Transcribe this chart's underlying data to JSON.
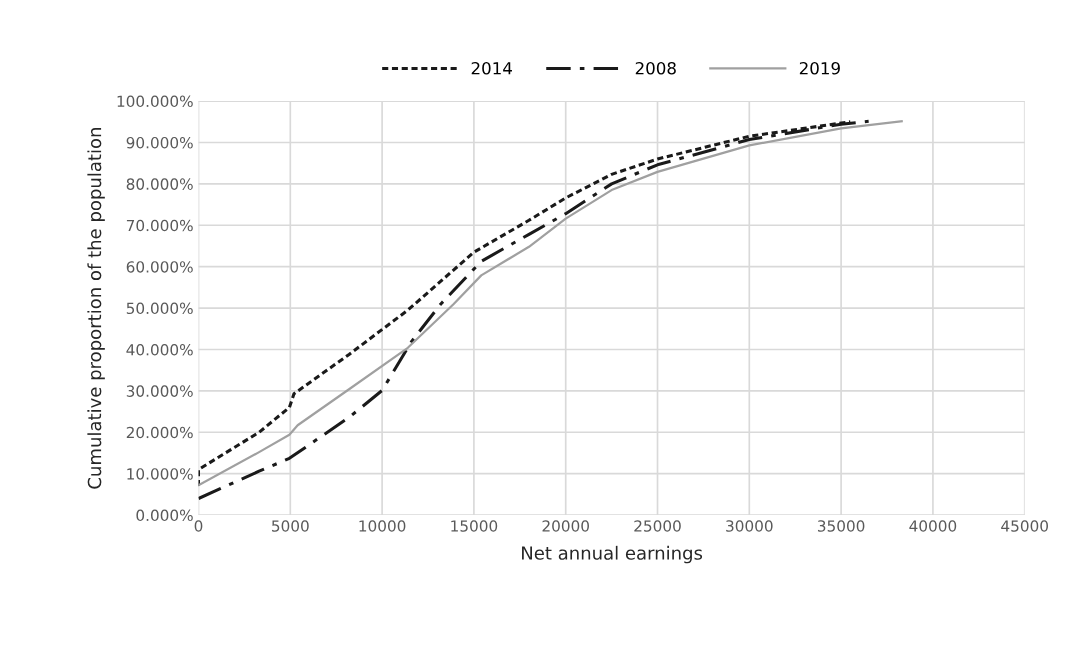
{
  "chart_data": {
    "type": "line",
    "xlabel": "Net annual earnings",
    "ylabel": "Cumulative proportion of the population",
    "xlim": [
      0,
      45000
    ],
    "xticks": [
      0,
      5000,
      10000,
      15000,
      20000,
      25000,
      30000,
      35000,
      40000,
      45000
    ],
    "ylim": [
      0,
      100
    ],
    "yticks": [
      {
        "value": 0,
        "label": "0.000%"
      },
      {
        "value": 10,
        "label": "10.000%"
      },
      {
        "value": 20,
        "label": "20.000%"
      },
      {
        "value": 30,
        "label": "30.000%"
      },
      {
        "value": 40,
        "label": "40.000%"
      },
      {
        "value": 50,
        "label": "50.000%"
      },
      {
        "value": 60,
        "label": "60.000%"
      },
      {
        "value": 70,
        "label": "70.000%"
      },
      {
        "value": 80,
        "label": "80.000%"
      },
      {
        "value": 90,
        "label": "90.000%"
      },
      {
        "value": 100,
        "label": "100.000%"
      }
    ],
    "grid": true,
    "legend": "top",
    "marker": "none",
    "series": [
      {
        "name": "2014",
        "color": "#1a1a1a",
        "line_style": "dotted",
        "x": [
          0,
          0,
          3300,
          4950,
          5200,
          8200,
          11400,
          15000,
          18000,
          20000,
          22500,
          25000,
          30000,
          35500
        ],
        "values": [
          7,
          11,
          20,
          26,
          29.3,
          38.8,
          49.5,
          63.5,
          71.2,
          76.6,
          82.3,
          86,
          91.5,
          95
        ]
      },
      {
        "name": "2008",
        "color": "#1a1a1a",
        "line_style": "dashdot",
        "x": [
          0,
          3300,
          4950,
          8200,
          10000,
          11600,
          13200,
          15400,
          18000,
          20000,
          22500,
          25000,
          30000,
          35000,
          36500
        ],
        "values": [
          4,
          10.6,
          13.7,
          23.6,
          30.1,
          41.9,
          51,
          61.3,
          67.8,
          72.8,
          80,
          84.6,
          90.7,
          94.4,
          95.1
        ]
      },
      {
        "name": "2019",
        "color": "#a0a0a0",
        "line_style": "solid",
        "x": [
          0,
          3300,
          4950,
          5400,
          8200,
          11400,
          13900,
          15400,
          18000,
          20000,
          22500,
          25000,
          30000,
          35000,
          38300
        ],
        "values": [
          7.2,
          15.2,
          19.4,
          21.7,
          30.4,
          40.4,
          51,
          57.9,
          64.8,
          71.6,
          78.5,
          82.9,
          89.3,
          93.4,
          95.1
        ]
      }
    ]
  }
}
